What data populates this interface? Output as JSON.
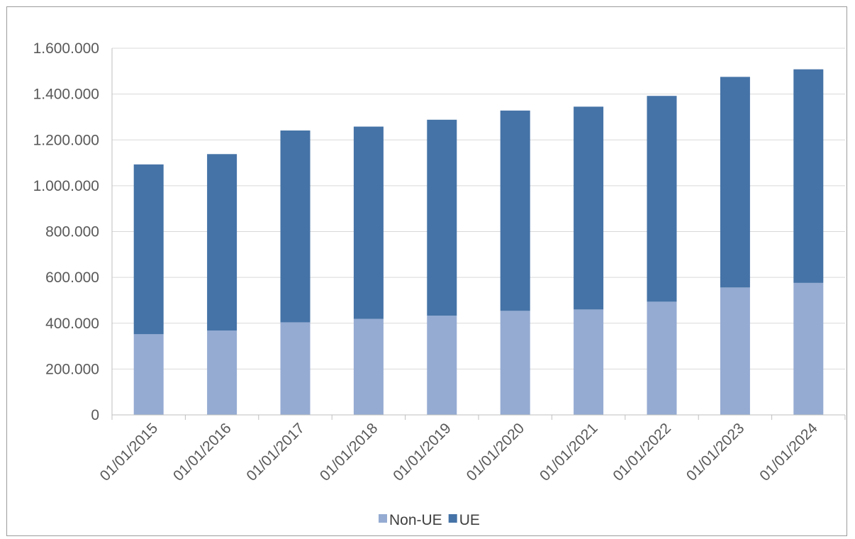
{
  "chart_data": {
    "type": "bar",
    "stacked": true,
    "categories": [
      "01/01/2015",
      "01/01/2016",
      "01/01/2017",
      "01/01/2018",
      "01/01/2019",
      "01/01/2020",
      "01/01/2021",
      "01/01/2022",
      "01/01/2023",
      "01/01/2024"
    ],
    "series": [
      {
        "name": "Non-UE",
        "color": "#95abd2",
        "values": [
          352000,
          368000,
          404000,
          419000,
          433000,
          454000,
          460000,
          494000,
          556000,
          576000
        ]
      },
      {
        "name": "UE",
        "color": "#4573a7",
        "values": [
          741000,
          770000,
          837000,
          839000,
          855000,
          874000,
          885000,
          898000,
          919000,
          932000
        ]
      }
    ],
    "ylim": [
      0,
      1600000
    ],
    "yticks": [
      0,
      200000,
      400000,
      600000,
      800000,
      1000000,
      1200000,
      1400000,
      1600000
    ],
    "ytick_labels": [
      "0",
      "200.000",
      "400.000",
      "600.000",
      "800.000",
      "1.000.000",
      "1.200.000",
      "1.400.000",
      "1.600.000"
    ],
    "grid": true,
    "legend_position": "bottom",
    "title": "",
    "xlabel": "",
    "ylabel": ""
  }
}
